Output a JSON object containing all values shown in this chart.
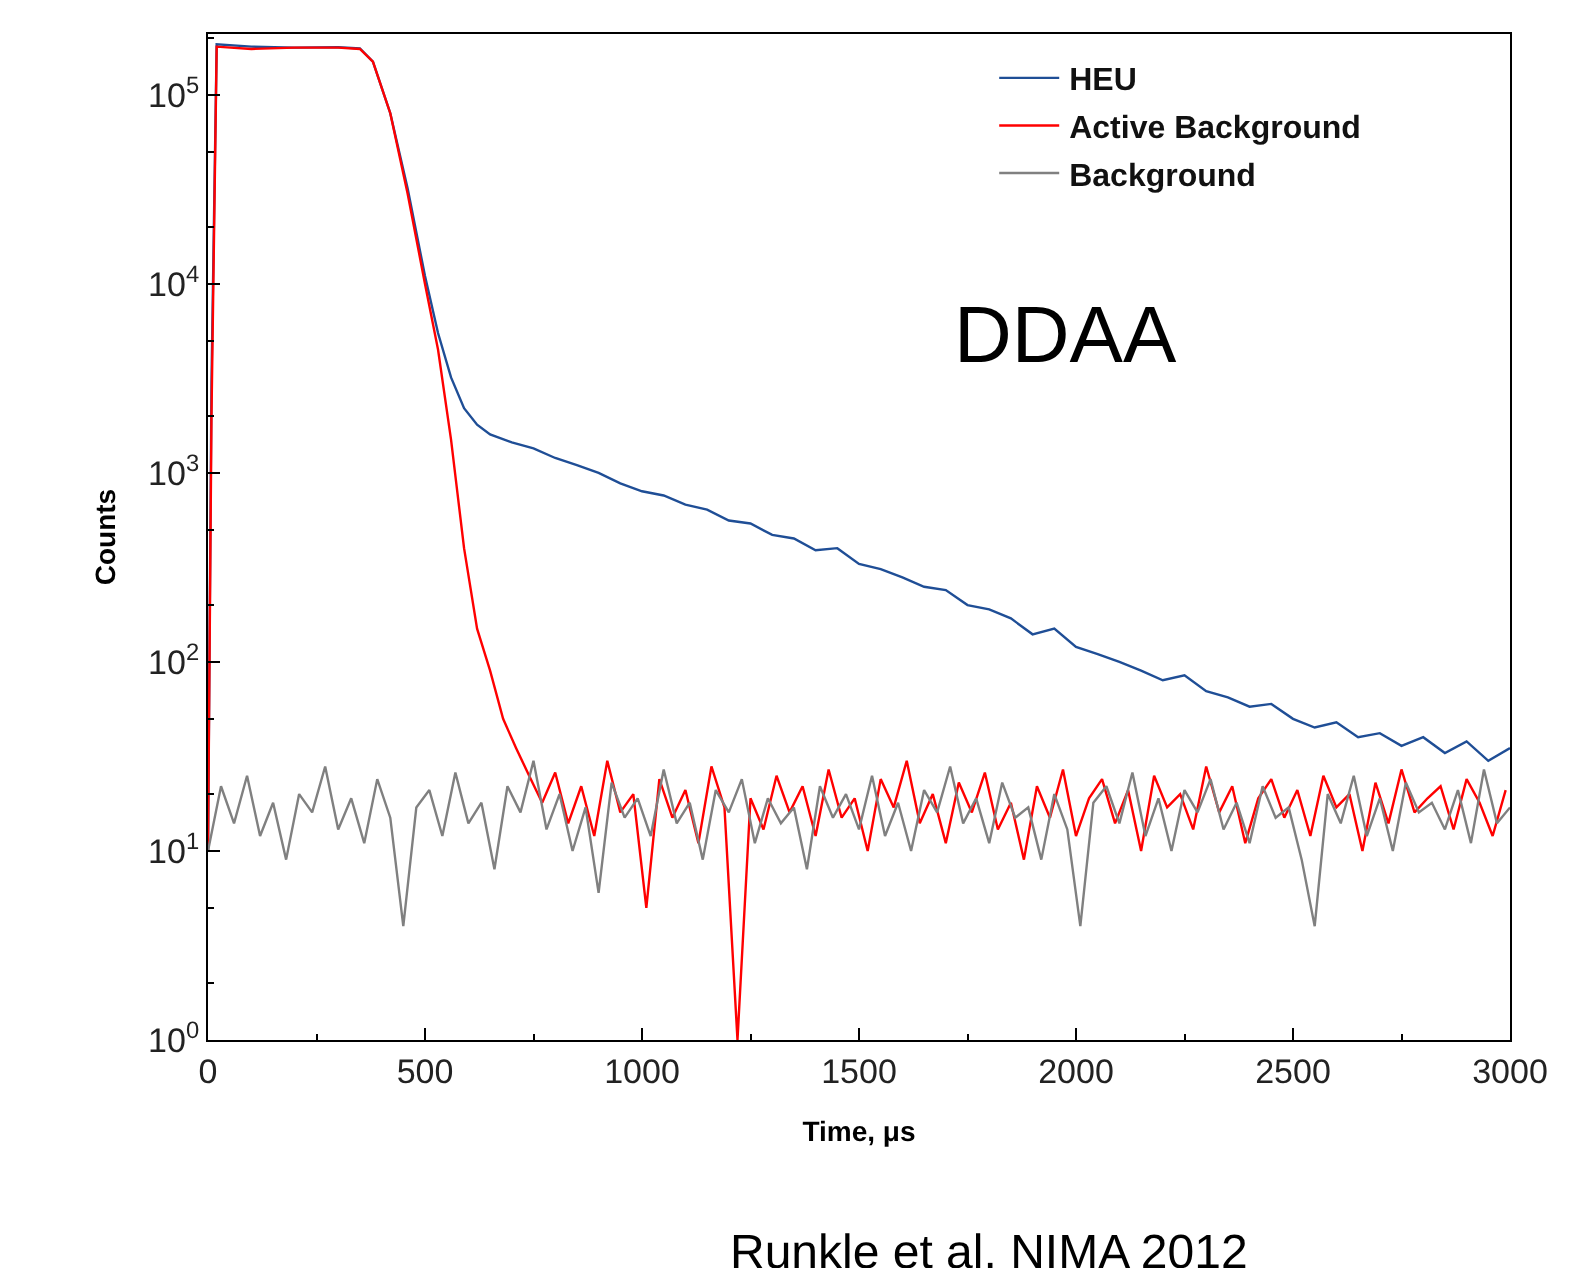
{
  "chart_data": {
    "type": "line",
    "xlabel": "Time, μs",
    "ylabel": "Counts",
    "annotations": [
      "DDAA",
      "Runkle et al. NIMA 2012"
    ],
    "log": "y",
    "grid": false,
    "legend": "top right",
    "marker": "none",
    "line_style": "solid",
    "xlim": [
      0,
      3000
    ],
    "xticks": [
      0,
      500,
      1000,
      1500,
      2000,
      2500,
      3000
    ],
    "ylim": [
      1,
      210000
    ],
    "yticks": [
      {
        "value": 1,
        "label": "10$^{0}$"
      },
      {
        "value": 10,
        "label": "10$^{1}$"
      },
      {
        "value": 100,
        "label": "10$^{2}$"
      },
      {
        "value": 1000,
        "label": "10$^{3}$"
      },
      {
        "value": 10000,
        "label": "10$^{4}$"
      },
      {
        "value": 100000,
        "label": "10$^{5}$"
      }
    ],
    "series": [
      {
        "name": "HEU",
        "color": "#1f4e96",
        "x": [
          0,
          8,
          20,
          100,
          200,
          300,
          350,
          380,
          420,
          460,
          500,
          530,
          560,
          590,
          620,
          650,
          700,
          750,
          800,
          850,
          900,
          950,
          1000,
          1050,
          1100,
          1150,
          1200,
          1250,
          1300,
          1350,
          1400,
          1450,
          1500,
          1550,
          1600,
          1650,
          1700,
          1750,
          1800,
          1850,
          1900,
          1950,
          2000,
          2050,
          2100,
          2150,
          2200,
          2250,
          2300,
          2350,
          2400,
          2450,
          2500,
          2550,
          2600,
          2650,
          2700,
          2750,
          2800,
          2850,
          2900,
          2950,
          3000
        ],
        "values": [
          10,
          3000,
          185000,
          180000,
          178000,
          179000,
          176000,
          150000,
          80000,
          32000,
          11000,
          5500,
          3200,
          2200,
          1800,
          1600,
          1450,
          1350,
          1200,
          1100,
          1000,
          880,
          800,
          760,
          680,
          640,
          560,
          540,
          470,
          450,
          390,
          400,
          330,
          310,
          280,
          250,
          240,
          200,
          190,
          170,
          140,
          150,
          120,
          110,
          100,
          90,
          80,
          85,
          70,
          65,
          58,
          60,
          50,
          45,
          48,
          40,
          42,
          36,
          40,
          33,
          38,
          30,
          35
        ]
      },
      {
        "name": "Active Background",
        "color": "#ff0000",
        "x": [
          0,
          8,
          20,
          100,
          200,
          300,
          350,
          380,
          420,
          460,
          500,
          530,
          560,
          590,
          620,
          650,
          680,
          710,
          740,
          770,
          800,
          830,
          860,
          890,
          920,
          950,
          980,
          1010,
          1040,
          1070,
          1100,
          1130,
          1160,
          1190,
          1220,
          1250,
          1280,
          1310,
          1340,
          1370,
          1400,
          1430,
          1460,
          1490,
          1520,
          1550,
          1580,
          1610,
          1640,
          1670,
          1700,
          1730,
          1760,
          1790,
          1820,
          1850,
          1880,
          1910,
          1940,
          1970,
          2000,
          2030,
          2060,
          2090,
          2120,
          2150,
          2180,
          2210,
          2240,
          2270,
          2300,
          2330,
          2360,
          2390,
          2420,
          2450,
          2480,
          2510,
          2540,
          2570,
          2600,
          2630,
          2660,
          2690,
          2720,
          2750,
          2780,
          2810,
          2840,
          2870,
          2900,
          2930,
          2960,
          2990
        ],
        "values": [
          10,
          2000,
          180000,
          175000,
          178000,
          178000,
          175000,
          150000,
          80000,
          30000,
          10000,
          4500,
          1500,
          400,
          150,
          90,
          50,
          35,
          25,
          18,
          26,
          14,
          22,
          12,
          30,
          16,
          20,
          5,
          24,
          15,
          21,
          11,
          28,
          17,
          1,
          19,
          13,
          25,
          16,
          22,
          12,
          27,
          15,
          19,
          10,
          24,
          17,
          30,
          14,
          20,
          11,
          23,
          16,
          26,
          13,
          18,
          9,
          22,
          15,
          27,
          12,
          19,
          24,
          14,
          21,
          10,
          25,
          17,
          20,
          13,
          28,
          16,
          22,
          11,
          19,
          24,
          15,
          21,
          12,
          25,
          17,
          20,
          10,
          23,
          14,
          27,
          16,
          19,
          22,
          13,
          24,
          18,
          12,
          21
        ]
      },
      {
        "name": "Background",
        "color": "#808080",
        "x": [
          0,
          30,
          60,
          90,
          120,
          150,
          180,
          210,
          240,
          270,
          300,
          330,
          360,
          390,
          420,
          450,
          480,
          510,
          540,
          570,
          600,
          630,
          660,
          690,
          720,
          750,
          780,
          810,
          840,
          870,
          900,
          930,
          960,
          990,
          1020,
          1050,
          1080,
          1110,
          1140,
          1170,
          1200,
          1230,
          1260,
          1290,
          1320,
          1350,
          1380,
          1410,
          1440,
          1470,
          1500,
          1530,
          1560,
          1590,
          1620,
          1650,
          1680,
          1710,
          1740,
          1770,
          1800,
          1830,
          1860,
          1890,
          1920,
          1950,
          1980,
          2010,
          2040,
          2070,
          2100,
          2130,
          2160,
          2190,
          2220,
          2250,
          2280,
          2310,
          2340,
          2370,
          2400,
          2430,
          2460,
          2490,
          2520,
          2550,
          2580,
          2610,
          2640,
          2670,
          2700,
          2730,
          2760,
          2790,
          2820,
          2850,
          2880,
          2910,
          2940,
          2970,
          3000
        ],
        "values": [
          10,
          22,
          14,
          25,
          12,
          18,
          9,
          20,
          16,
          28,
          13,
          19,
          11,
          24,
          15,
          4,
          17,
          21,
          12,
          26,
          14,
          18,
          8,
          22,
          16,
          30,
          13,
          20,
          10,
          17,
          6,
          23,
          15,
          19,
          12,
          27,
          14,
          18,
          9,
          21,
          16,
          24,
          11,
          19,
          14,
          17,
          8,
          22,
          15,
          20,
          13,
          25,
          12,
          18,
          10,
          21,
          16,
          28,
          14,
          19,
          11,
          23,
          15,
          17,
          9,
          20,
          13,
          4,
          18,
          22,
          14,
          26,
          12,
          19,
          10,
          21,
          16,
          24,
          13,
          18,
          11,
          22,
          15,
          17,
          9,
          4,
          20,
          14,
          25,
          12,
          19,
          10,
          23,
          16,
          18,
          13,
          21,
          11,
          27,
          14,
          17
        ]
      }
    ]
  }
}
